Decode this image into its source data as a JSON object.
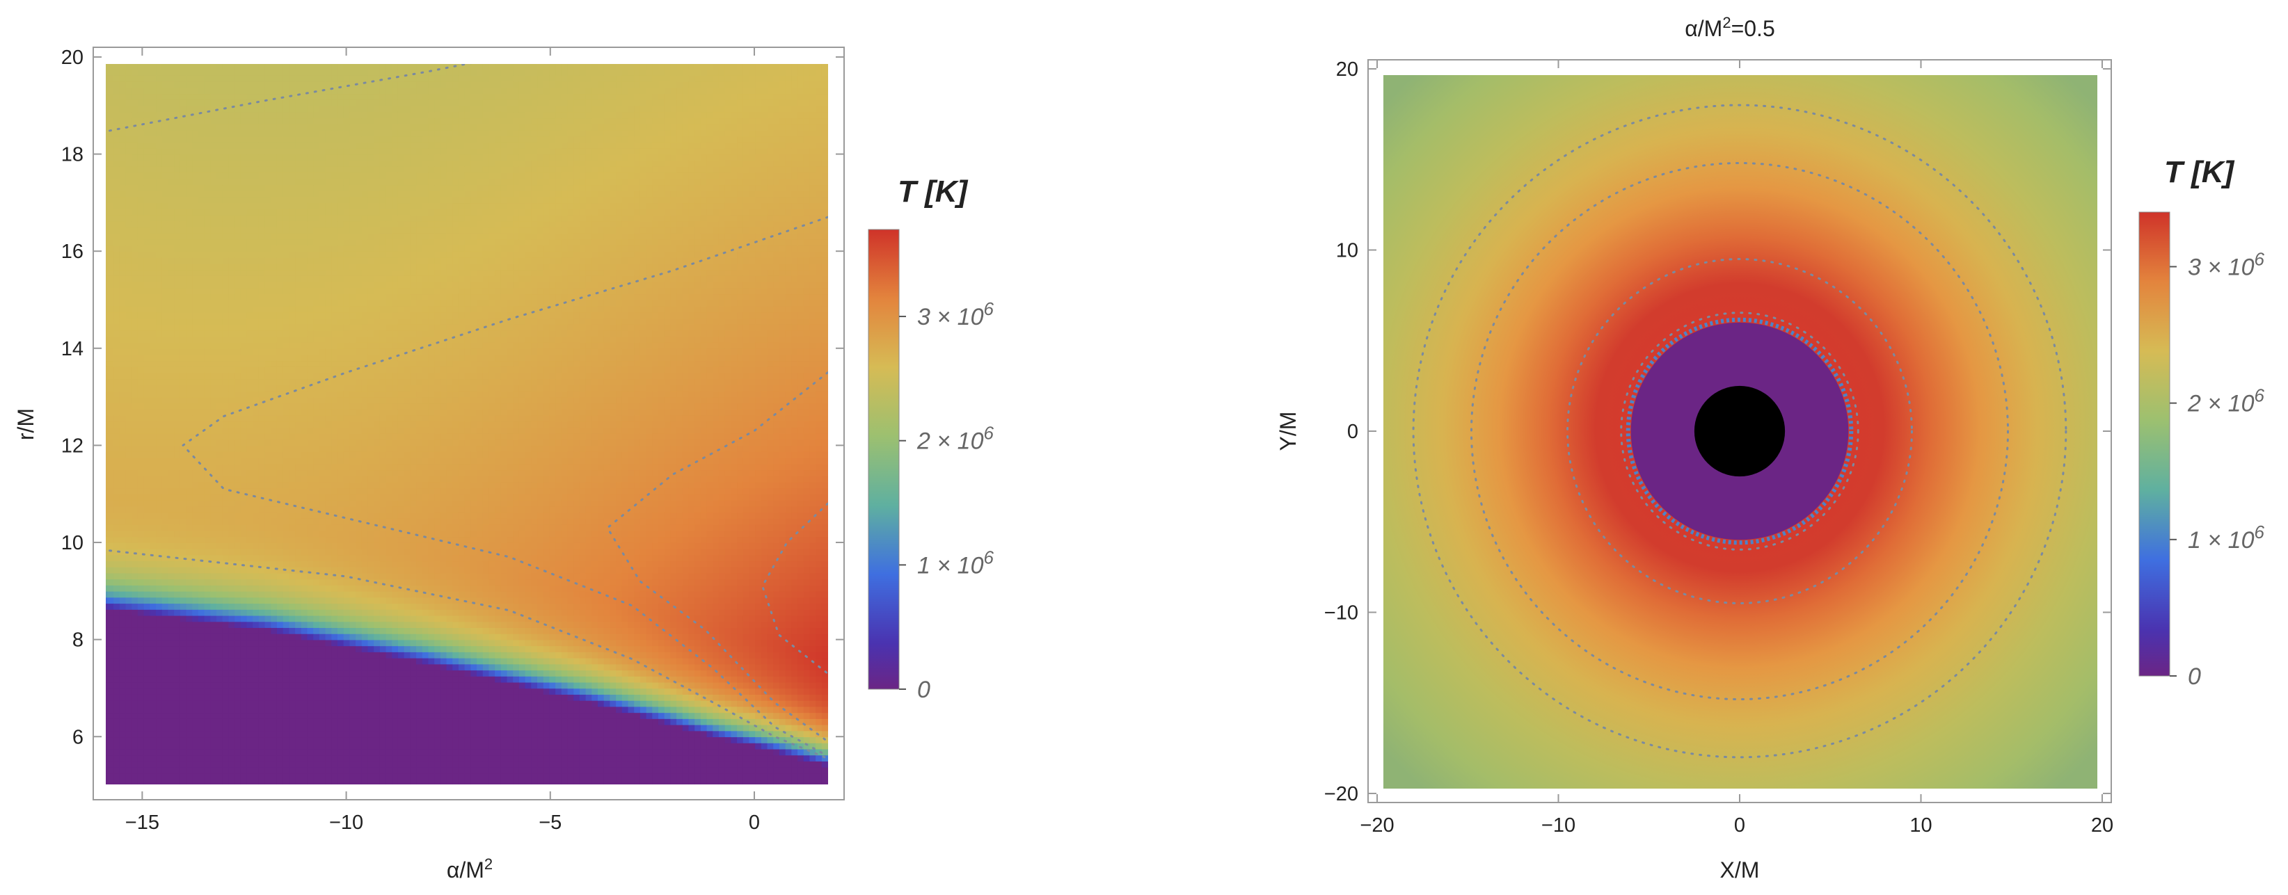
{
  "chart_data": [
    {
      "type": "heatmap",
      "title": "",
      "xlabel": "α/M²",
      "ylabel": "r/M",
      "xlim": [
        -16.2,
        2.2
      ],
      "ylim": [
        4.7,
        20.2
      ],
      "x_plot_range": [
        -16,
        1.8
      ],
      "y_plot_range": [
        5,
        20
      ],
      "x_ticks": [
        -15,
        -10,
        -5,
        0
      ],
      "x_tick_labels": [
        "−15",
        "−10",
        "−5",
        "0"
      ],
      "y_ticks": [
        6,
        8,
        10,
        12,
        14,
        16,
        18,
        20
      ],
      "y_tick_labels": [
        "6",
        "8",
        "10",
        "12",
        "14",
        "16",
        "18",
        "20"
      ],
      "inner_edge_r": [
        [
          -16,
          8.65
        ],
        [
          -12,
          8.2
        ],
        [
          -8,
          7.5
        ],
        [
          -4,
          6.7
        ],
        [
          -1,
          6.0
        ],
        [
          0,
          5.8
        ],
        [
          1.8,
          5.4
        ]
      ],
      "peak_temperature_K": 3700000,
      "contour_levels_K": [
        2000000,
        2500000,
        3000000,
        3500000
      ],
      "grid": false,
      "colorbar": {
        "title": "T [K]",
        "range_K": [
          0,
          3700000
        ],
        "ticks_K": [
          0,
          1000000,
          2000000,
          3000000
        ],
        "tick_mantissas": [
          "0",
          "1 × 10",
          "2 × 10",
          "3 × 10"
        ],
        "tick_exponents": [
          "",
          "6",
          "6",
          "6"
        ]
      }
    },
    {
      "type": "heatmap",
      "title_prefix": "α/M",
      "title_exp": "2",
      "title_suffix": "=0.5",
      "alpha_over_M2": 0.5,
      "xlabel": "X/M",
      "ylabel": "Y/M",
      "xlim": [
        -20.5,
        20.5
      ],
      "ylim": [
        -20.5,
        20.5
      ],
      "plot_range": [
        -20,
        20
      ],
      "x_ticks": [
        -20,
        -10,
        0,
        10,
        20
      ],
      "x_tick_labels": [
        "−20",
        "−10",
        "0",
        "10",
        "20"
      ],
      "y_ticks": [
        -20,
        -10,
        0,
        10,
        20
      ],
      "y_tick_labels": [
        "−20",
        "−10",
        "0",
        "10",
        "20"
      ],
      "inner_edge_radius": 6,
      "black_hole_radius": 2.5,
      "peak_temperature_K": 3400000,
      "contour_radii": [
        9.5,
        14.8,
        18
      ],
      "grid": false,
      "colorbar": {
        "title": "T [K]",
        "range_K": [
          0,
          3400000
        ],
        "ticks_K": [
          0,
          1000000,
          2000000,
          3000000
        ],
        "tick_mantissas": [
          "0",
          "1 × 10",
          "2 × 10",
          "3 × 10"
        ],
        "tick_exponents": [
          "",
          "6",
          "6",
          "6"
        ]
      }
    }
  ],
  "colors": {
    "purple_floor": "#6b2585",
    "black_hole": "#000000",
    "frame": "#9a9a9a",
    "contour": "#7a8aa0"
  }
}
